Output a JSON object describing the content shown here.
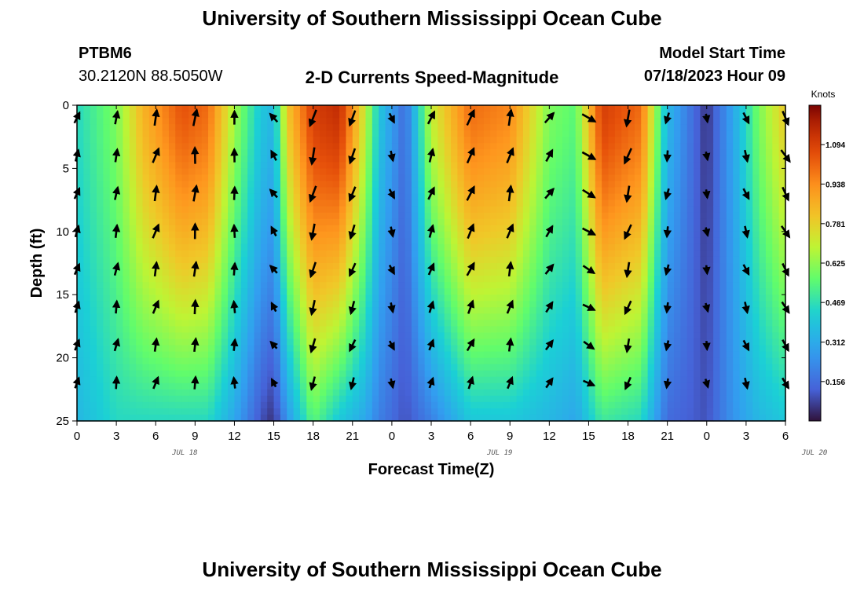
{
  "header": {
    "title_top": "University of Southern Mississippi Ocean Cube",
    "station_id": "PTBM6",
    "station_coords": "30.2120N  88.5050W",
    "product_title": "2-D Currents Speed-Magnitude",
    "model_label": "Model Start Time",
    "model_time": "07/18/2023 Hour 09",
    "title_bottom": "University of Southern Mississippi Ocean Cube"
  },
  "chart_data": {
    "type": "heatmap",
    "title": "2-D Currents Speed-Magnitude",
    "xlabel": "Forecast Time(Z)",
    "ylabel": "Depth (ft)",
    "ylim": [
      0,
      25
    ],
    "y_inverted": true,
    "x_hours_since_start_range": [
      0,
      54
    ],
    "x_tick_labels": [
      "0",
      "3",
      "6",
      "9",
      "12",
      "15",
      "18",
      "21",
      "0",
      "3",
      "6",
      "9",
      "12",
      "15",
      "18",
      "21",
      "0",
      "3",
      "6"
    ],
    "y_ticks": [
      0,
      5,
      10,
      15,
      20,
      25
    ],
    "date_labels": [
      {
        "text": "JUL 18",
        "at_tick": 3
      },
      {
        "text": "JUL 19",
        "at_tick": 11
      },
      {
        "text": "JUL 20",
        "at_tick": 19
      }
    ],
    "colorbar": {
      "label": "Knots",
      "ticks": [
        0.156,
        0.312,
        0.469,
        0.625,
        0.781,
        0.938,
        1.094
      ],
      "range": [
        0.0,
        1.25
      ]
    },
    "speed_profile_knots": [
      {
        "hour": 0,
        "top": 0.45,
        "bottom": 0.35
      },
      {
        "hour": 3,
        "top": 0.6,
        "bottom": 0.45
      },
      {
        "hour": 5,
        "top": 0.85,
        "bottom": 0.45
      },
      {
        "hour": 8,
        "top": 1.05,
        "bottom": 0.45
      },
      {
        "hour": 10,
        "top": 1.0,
        "bottom": 0.45
      },
      {
        "hour": 12,
        "top": 0.65,
        "bottom": 0.3
      },
      {
        "hour": 14,
        "top": 0.4,
        "bottom": 0.1
      },
      {
        "hour": 15,
        "top": 0.35,
        "bottom": 0.05
      },
      {
        "hour": 16,
        "top": 0.8,
        "bottom": 0.25
      },
      {
        "hour": 18,
        "top": 1.1,
        "bottom": 0.55
      },
      {
        "hour": 20,
        "top": 1.15,
        "bottom": 0.4
      },
      {
        "hour": 22,
        "top": 0.7,
        "bottom": 0.3
      },
      {
        "hour": 23,
        "top": 0.4,
        "bottom": 0.2
      },
      {
        "hour": 25,
        "top": 0.15,
        "bottom": 0.1
      },
      {
        "hour": 27,
        "top": 0.7,
        "bottom": 0.2
      },
      {
        "hour": 30,
        "top": 1.0,
        "bottom": 0.4
      },
      {
        "hour": 33,
        "top": 0.95,
        "bottom": 0.4
      },
      {
        "hour": 36,
        "top": 0.6,
        "bottom": 0.35
      },
      {
        "hour": 38,
        "top": 0.55,
        "bottom": 0.3
      },
      {
        "hour": 40,
        "top": 1.1,
        "bottom": 0.5
      },
      {
        "hour": 43,
        "top": 1.0,
        "bottom": 0.45
      },
      {
        "hour": 45,
        "top": 0.35,
        "bottom": 0.15
      },
      {
        "hour": 48,
        "top": 0.05,
        "bottom": 0.1
      },
      {
        "hour": 50,
        "top": 0.3,
        "bottom": 0.25
      },
      {
        "hour": 52,
        "top": 0.6,
        "bottom": 0.35
      },
      {
        "hour": 54,
        "top": 0.8,
        "bottom": 0.4
      }
    ],
    "direction_profile_deg": [
      {
        "hour": 0,
        "deg": 20
      },
      {
        "hour": 3,
        "deg": 10
      },
      {
        "hour": 6,
        "deg": 15
      },
      {
        "hour": 9,
        "deg": 5
      },
      {
        "hour": 12,
        "deg": 0
      },
      {
        "hour": 14,
        "deg": -10
      },
      {
        "hour": 16,
        "deg": -60
      },
      {
        "hour": 18,
        "deg": 195
      },
      {
        "hour": 21,
        "deg": 200
      },
      {
        "hour": 23,
        "deg": 170
      },
      {
        "hour": 25,
        "deg": 150
      },
      {
        "hour": 27,
        "deg": 20
      },
      {
        "hour": 30,
        "deg": 25
      },
      {
        "hour": 33,
        "deg": 15
      },
      {
        "hour": 36,
        "deg": 35
      },
      {
        "hour": 38,
        "deg": 50
      },
      {
        "hour": 40,
        "deg": 190
      },
      {
        "hour": 43,
        "deg": 200
      },
      {
        "hour": 45,
        "deg": 190
      },
      {
        "hour": 48,
        "deg": 170
      },
      {
        "hour": 51,
        "deg": 160
      },
      {
        "hour": 54,
        "deg": 150
      }
    ]
  }
}
